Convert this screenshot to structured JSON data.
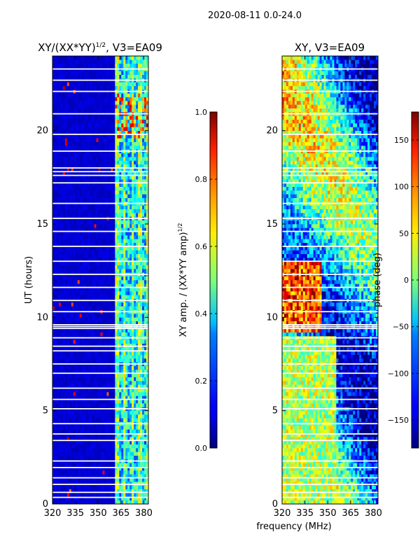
{
  "figure_title": "2020-08-11 0.0-24.0",
  "left_panel": {
    "title": "XY/(XX*YY)",
    "title_sup": "1/2",
    "title_suffix": ", V3=EA09",
    "ylabel": "UT (hours)"
  },
  "left_colorbar": {
    "label": "XY amp. / (XX*YY amp)",
    "label_sup": "1/2",
    "ticks": [
      "0.0",
      "0.2",
      "0.4",
      "0.6",
      "0.8",
      "1.0"
    ]
  },
  "right_panel": {
    "title": "XY, V3=EA09"
  },
  "right_colorbar": {
    "label": "phase (deg)",
    "ticks": [
      "150",
      "100",
      "50",
      "0",
      "−50",
      "−100",
      "−150"
    ]
  },
  "xlabel": "frequency (MHz)",
  "chart_data": [
    {
      "type": "heatmap",
      "title": "XY/(XX*YY)^1/2, V3=EA09",
      "xlabel": "",
      "ylabel": "UT (hours)",
      "xlim": [
        320,
        383
      ],
      "ylim": [
        0,
        24
      ],
      "xticks": [
        320,
        335,
        350,
        365,
        380
      ],
      "yticks": [
        0,
        5,
        10,
        15,
        20
      ],
      "colorbar": {
        "label": "XY amp. / (XX*YY amp)^1/2",
        "range": [
          0.0,
          1.0
        ],
        "ticks": [
          0.0,
          0.2,
          0.4,
          0.6,
          0.8,
          1.0
        ]
      },
      "description_values": {
        "low_freq_band_amp": 0.05,
        "high_freq_band_amp": 0.35,
        "high_freq_band_start_mhz": 361
      }
    },
    {
      "type": "heatmap",
      "title": "XY, V3=EA09",
      "xlabel": "frequency (MHz)",
      "ylabel": "",
      "xlim": [
        320,
        383
      ],
      "ylim": [
        0,
        24
      ],
      "xticks": [
        320,
        335,
        350,
        365,
        380
      ],
      "yticks": [
        0,
        5,
        10,
        15,
        20
      ],
      "colorbar": {
        "label": "phase (deg)",
        "range": [
          -180,
          180
        ],
        "ticks": [
          -150,
          -100,
          -50,
          0,
          50,
          100,
          150
        ]
      }
    }
  ]
}
